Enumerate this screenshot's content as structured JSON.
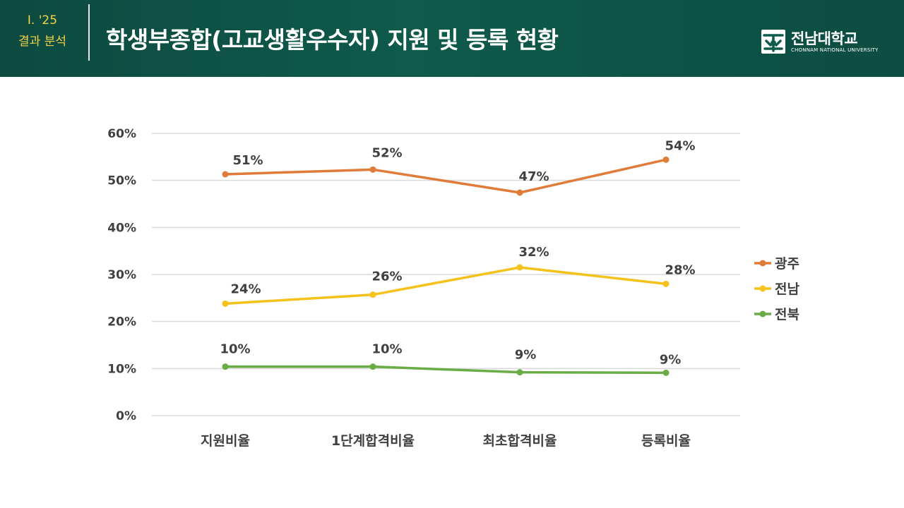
{
  "header": {
    "section_number": "Ⅰ. '25",
    "section_name": "결과 분석",
    "title": "학생부종합(고교생활우수자) 지원 및 등록 현황",
    "logo_name": "전남대학교",
    "logo_english": "CHONNAM NATIONAL UNIVERSITY",
    "logo_icon": "chonnam-university-emblem-icon"
  },
  "colors": {
    "header_bg": "#0f5a4b",
    "accent_yellow": "#f2d24a",
    "series_gwangju": "#e07b39",
    "series_jeonnam": "#f5c21b",
    "series_jeonbuk": "#6aac46",
    "grid": "#d9d9d9"
  },
  "chart_data": {
    "type": "line",
    "title": "",
    "xlabel": "",
    "ylabel": "",
    "categories": [
      "지원비율",
      "1단계합격비율",
      "최초합격비율",
      "등록비율"
    ],
    "ylim": [
      0,
      60
    ],
    "yticks": [
      0,
      10,
      20,
      30,
      40,
      50,
      60
    ],
    "ytick_labels": [
      "0%",
      "10%",
      "20%",
      "30%",
      "40%",
      "50%",
      "60%"
    ],
    "grid": true,
    "legend_position": "right",
    "series": [
      {
        "name": "광주",
        "values": [
          51.3,
          52.3,
          47.4,
          54.4
        ],
        "labels": [
          "51%",
          "52%",
          "47%",
          "54%"
        ],
        "color": "#e07b39"
      },
      {
        "name": "전남",
        "values": [
          23.8,
          25.7,
          31.5,
          28.0
        ],
        "labels": [
          "24%",
          "26%",
          "32%",
          "28%"
        ],
        "color": "#f5c21b"
      },
      {
        "name": "전북",
        "values": [
          10.4,
          10.4,
          9.2,
          9.1
        ],
        "labels": [
          "10%",
          "10%",
          "9%",
          "9%"
        ],
        "color": "#6aac46"
      }
    ]
  }
}
